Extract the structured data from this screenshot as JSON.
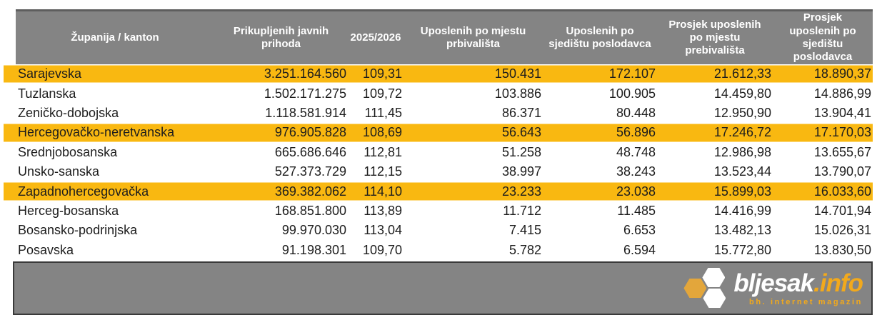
{
  "table": {
    "columns": [
      {
        "label": "Županija / kanton"
      },
      {
        "label": "Prikupljenih javnih prihoda"
      },
      {
        "label": "2025/2026"
      },
      {
        "label": "Uposlenih po mjestu prbivališta"
      },
      {
        "label": "Uposlenih po sjedištu poslodavca"
      },
      {
        "label": "Prosjek uposlenih po mjestu prebivališta"
      },
      {
        "label": "Prosjek uposlenih po sjedištu poslodavca"
      }
    ],
    "rows": [
      {
        "name": "Sarajevska",
        "values": [
          "3.251.164.560",
          "109,31",
          "150.431",
          "172.107",
          "21.612,33",
          "18.890,37"
        ],
        "highlighted": true
      },
      {
        "name": "Tuzlanska",
        "values": [
          "1.502.171.275",
          "109,72",
          "103.886",
          "100.905",
          "14.459,80",
          "14.886,99"
        ],
        "highlighted": false
      },
      {
        "name": "Zeničko-dobojska",
        "values": [
          "1.118.581.914",
          "111,45",
          "86.371",
          "80.448",
          "12.950,90",
          "13.904,41"
        ],
        "highlighted": false
      },
      {
        "name": "Hercegovačko-neretvanska",
        "values": [
          "976.905.828",
          "108,69",
          "56.643",
          "56.896",
          "17.246,72",
          "17.170,03"
        ],
        "highlighted": true
      },
      {
        "name": "Srednjobosanska",
        "values": [
          "665.686.646",
          "112,81",
          "51.258",
          "48.748",
          "12.986,98",
          "13.655,67"
        ],
        "highlighted": false
      },
      {
        "name": "Unsko-sanska",
        "values": [
          "527.373.729",
          "112,15",
          "38.997",
          "38.243",
          "13.523,44",
          "13.790,07"
        ],
        "highlighted": false
      },
      {
        "name": "Zapadnohercegovačka",
        "values": [
          "369.382.062",
          "114,10",
          "23.233",
          "23.038",
          "15.899,03",
          "16.033,60"
        ],
        "highlighted": true
      },
      {
        "name": "Herceg-bosanska",
        "values": [
          "168.851.800",
          "113,89",
          "11.712",
          "11.485",
          "14.416,99",
          "14.701,94"
        ],
        "highlighted": false
      },
      {
        "name": "Bosansko-podrinjska",
        "values": [
          "99.970.030",
          "113,04",
          "7.415",
          "6.653",
          "13.482,13",
          "15.026,31"
        ],
        "highlighted": false
      },
      {
        "name": "Posavska",
        "values": [
          "91.198.301",
          "109,70",
          "5.782",
          "6.594",
          "15.772,80",
          "13.830,50"
        ],
        "highlighted": false
      }
    ]
  },
  "chart_data": {
    "type": "table",
    "title": "",
    "columns": [
      "Županija / kanton",
      "Prikupljenih javnih prihoda",
      "2025/2026",
      "Uposlenih po mjestu prbivališta",
      "Uposlenih po sjedištu poslodavca",
      "Prosjek uposlenih po mjestu prebivališta",
      "Prosjek uposlenih po sjedištu poslodavca"
    ],
    "rows": [
      [
        "Sarajevska",
        3251164560,
        109.31,
        150431,
        172107,
        21612.33,
        18890.37
      ],
      [
        "Tuzlanska",
        1502171275,
        109.72,
        103886,
        100905,
        14459.8,
        14886.99
      ],
      [
        "Zeničko-dobojska",
        1118581914,
        111.45,
        86371,
        80448,
        12950.9,
        13904.41
      ],
      [
        "Hercegovačko-neretvanska",
        976905828,
        108.69,
        56643,
        56896,
        17246.72,
        17170.03
      ],
      [
        "Srednjobosanska",
        665686646,
        112.81,
        51258,
        48748,
        12986.98,
        13655.67
      ],
      [
        "Unsko-sanska",
        527373729,
        112.15,
        38997,
        38243,
        13523.44,
        13790.07
      ],
      [
        "Zapadnohercegovačka",
        369382062,
        114.1,
        23233,
        23038,
        15899.03,
        16033.6
      ],
      [
        "Herceg-bosanska",
        168851800,
        113.89,
        11712,
        11485,
        14416.99,
        14701.94
      ],
      [
        "Bosansko-podrinjska",
        99970030,
        113.04,
        7415,
        6653,
        13482.13,
        15026.31
      ],
      [
        "Posavska",
        91198301,
        109.7,
        5782,
        6594,
        15772.8,
        13830.5
      ]
    ],
    "highlighted_rows": [
      "Sarajevska",
      "Hercegovačko-neretvanska",
      "Zapadnohercegovačka"
    ]
  },
  "footer": {
    "logo_text_white": "bljesak",
    "logo_text_accent": ".info",
    "tagline": "bh. internet magazin"
  },
  "colors": {
    "highlight": "#F9B811",
    "header_bg": "#848484",
    "header_border": "#5E5E5E",
    "text": "#1D1D1D",
    "footer_bg": "#848484",
    "footer_border": "#3A3A3A",
    "logo_hex_gold": "#E3A63B",
    "logo_accent_text": "#F2A91C"
  }
}
